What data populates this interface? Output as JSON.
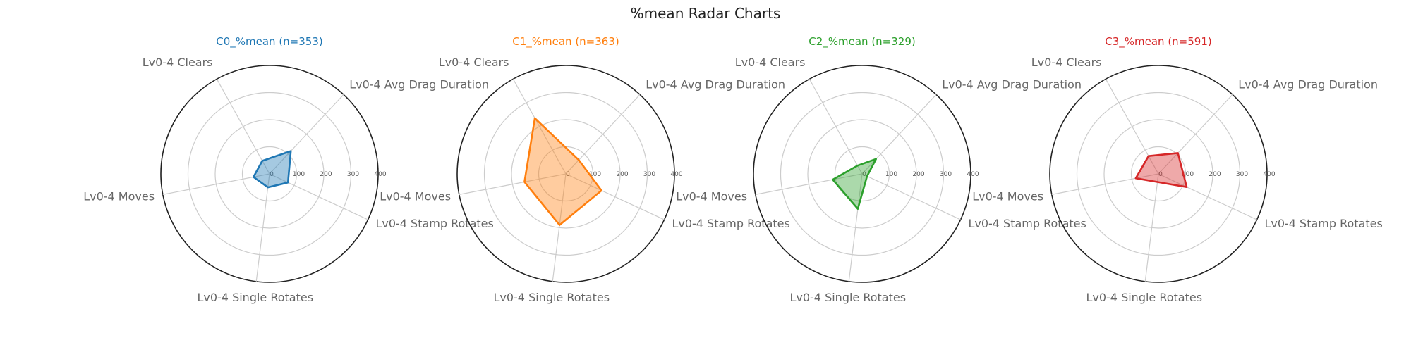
{
  "title": "%mean Radar Charts",
  "chart_data": [
    {
      "type": "radar",
      "title": "C0_%mean (n=353)",
      "color": "#1f77b4",
      "axes": [
        "Lv0-4 Clears",
        "Lv0-4 Avg Drag Duration",
        "Lv0-4 Stamp Rotates",
        "Lv0-4 Single Rotates",
        "Lv0-4 Moves"
      ],
      "values": [
        55,
        115,
        75,
        50,
        60
      ],
      "rlim": [
        0,
        400
      ],
      "rticks": [
        "0",
        "100",
        "200",
        "300",
        "400"
      ],
      "grid": true
    },
    {
      "type": "radar",
      "title": "C1_%mean (n=363)",
      "color": "#ff7f0e",
      "axes": [
        "Lv0-4 Clears",
        "Lv0-4 Avg Drag Duration",
        "Lv0-4 Stamp Rotates",
        "Lv0-4 Single Rotates",
        "Lv0-4 Moves"
      ],
      "values": [
        235,
        70,
        145,
        190,
        155
      ],
      "rlim": [
        0,
        400
      ],
      "rticks": [
        "0",
        "100",
        "200",
        "300",
        "400"
      ],
      "grid": true
    },
    {
      "type": "radar",
      "title": "C2_%mean (n=329)",
      "color": "#2ca02c",
      "axes": [
        "Lv0-4 Clears",
        "Lv0-4 Avg Drag Duration",
        "Lv0-4 Stamp Rotates",
        "Lv0-4 Single Rotates",
        "Lv0-4 Moves"
      ],
      "values": [
        35,
        75,
        20,
        130,
        110
      ],
      "rlim": [
        0,
        400
      ],
      "rticks": [
        "0",
        "100",
        "200",
        "300",
        "400"
      ],
      "grid": true
    },
    {
      "type": "radar",
      "title": "C3_%mean (n=591)",
      "color": "#d62728",
      "axes": [
        "Lv0-4 Clears",
        "Lv0-4 Avg Drag Duration",
        "Lv0-4 Stamp Rotates",
        "Lv0-4 Single Rotates",
        "Lv0-4 Moves"
      ],
      "values": [
        75,
        105,
        115,
        30,
        85
      ],
      "rlim": [
        0,
        400
      ],
      "rticks": [
        "0",
        "100",
        "200",
        "300",
        "400"
      ],
      "grid": true
    }
  ]
}
